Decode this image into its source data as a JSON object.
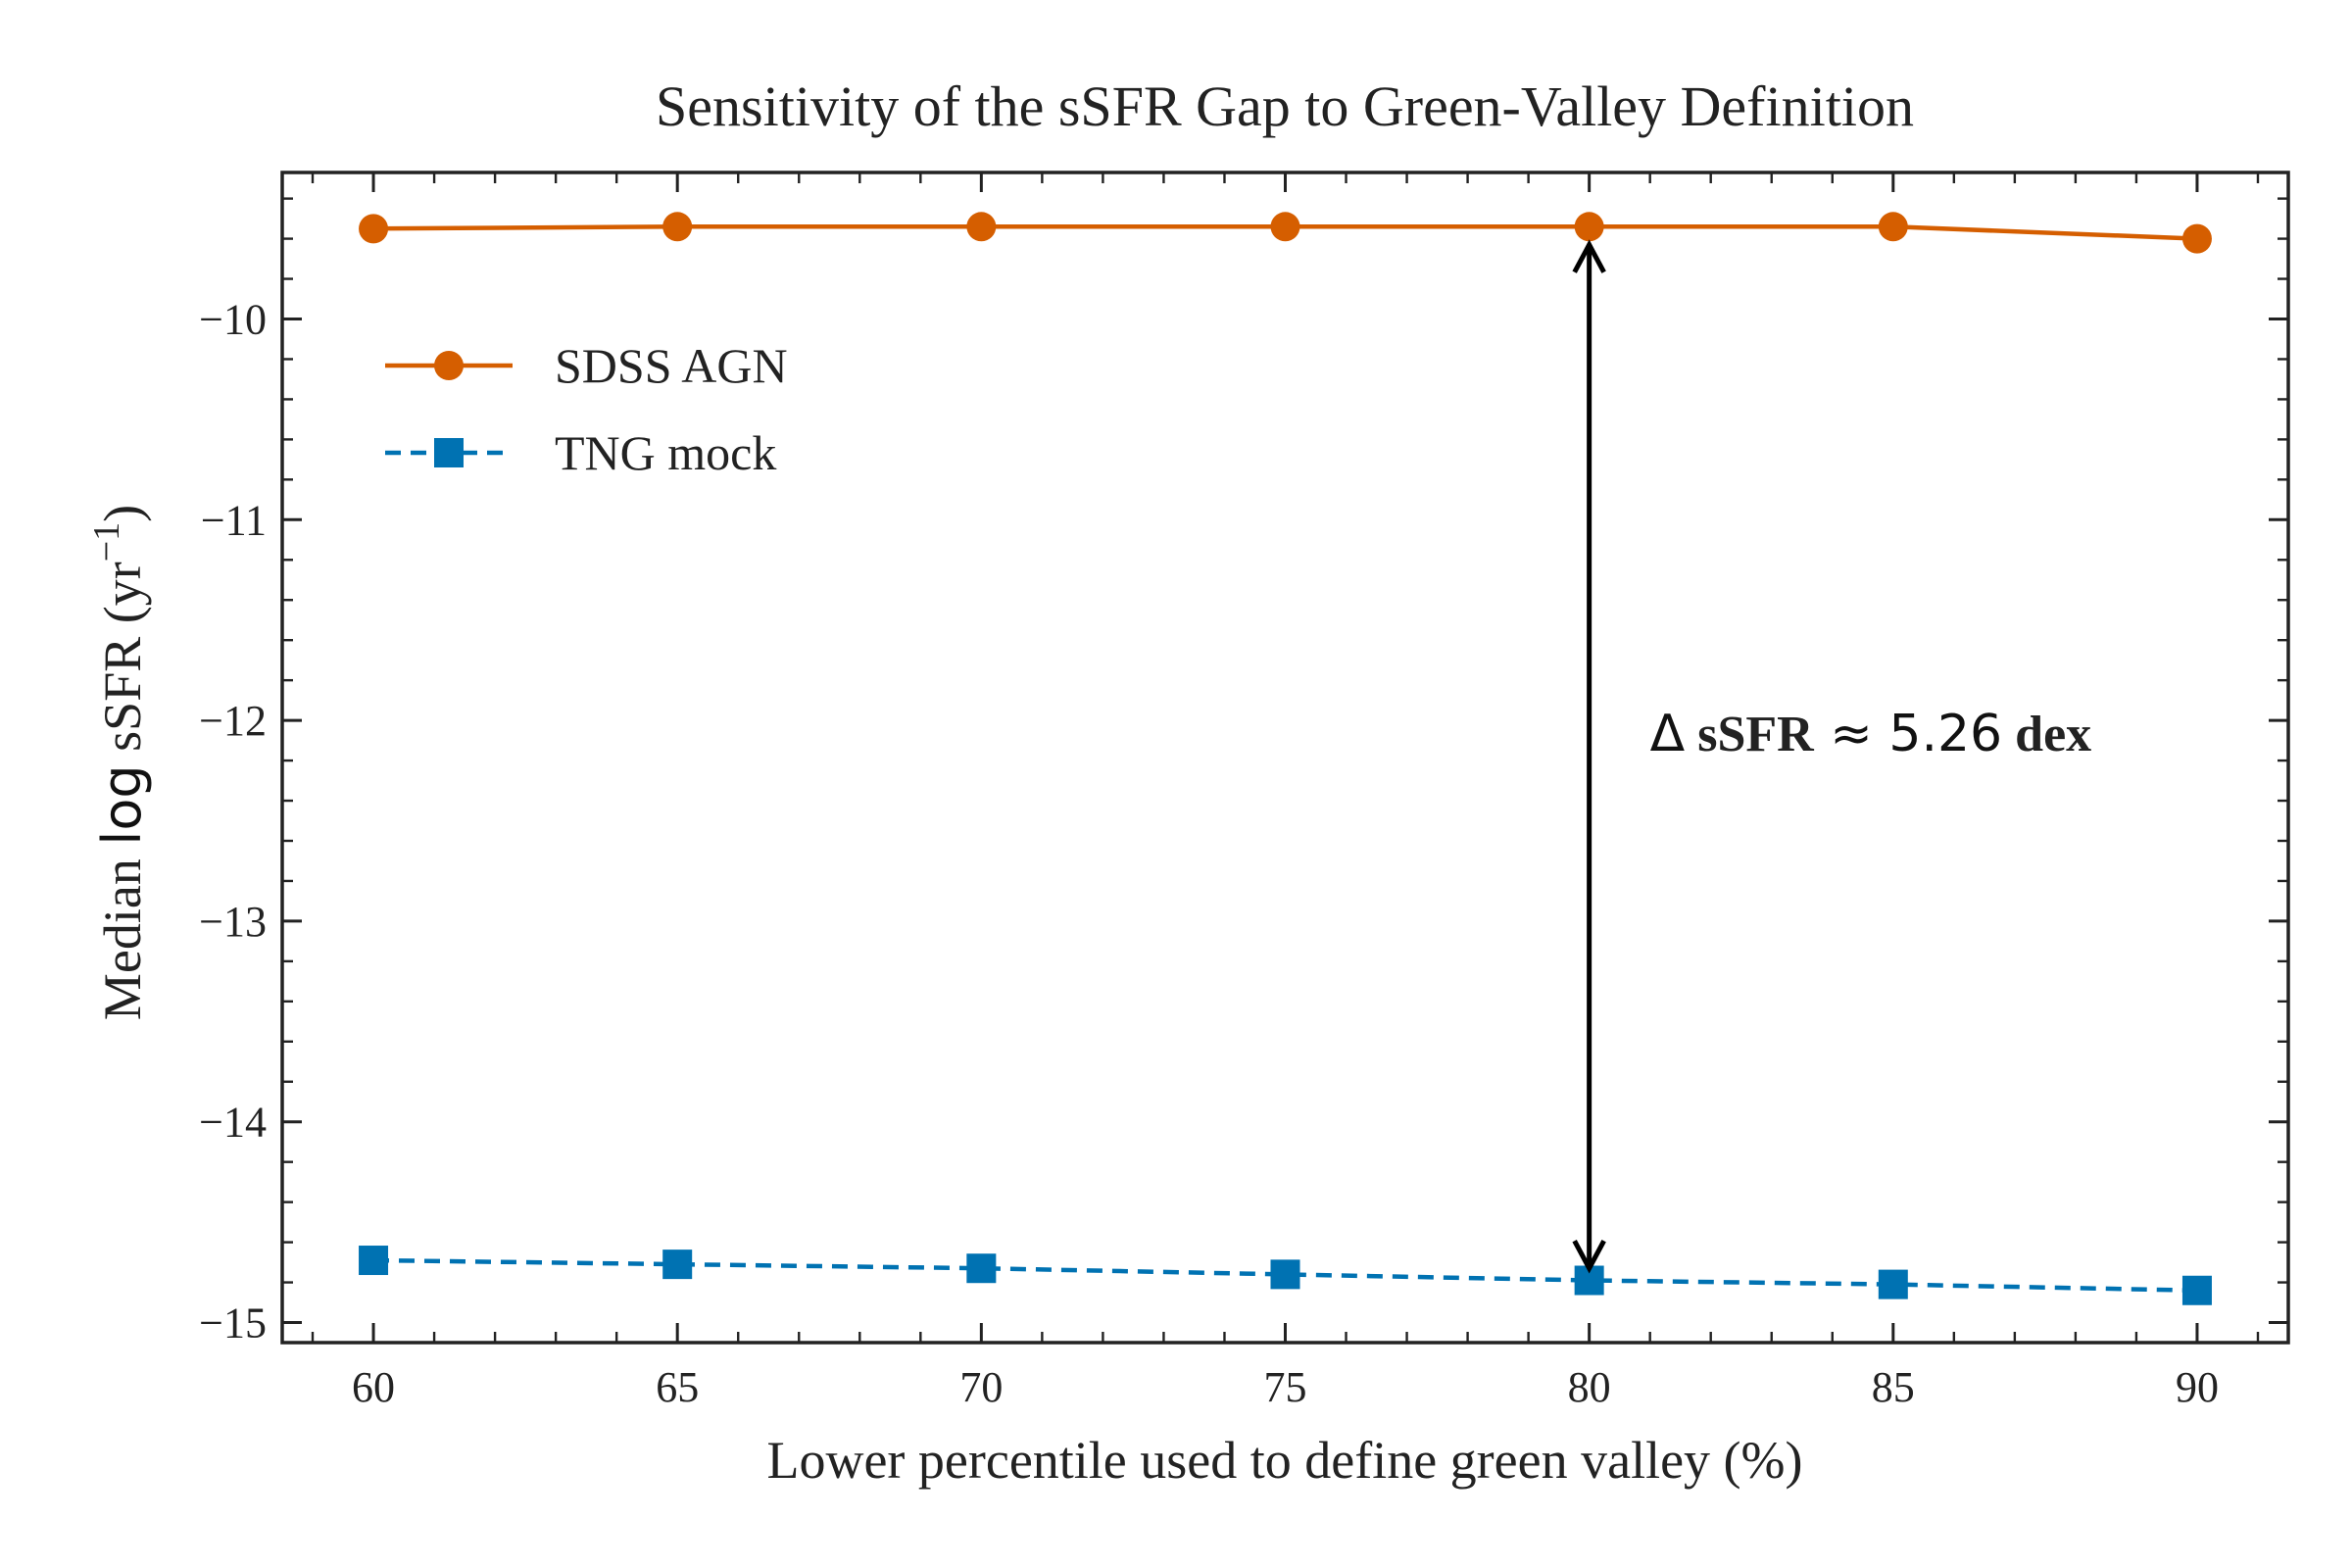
{
  "chart_data": {
    "type": "line",
    "title": "Sensitivity of the sSFR Gap to Green-Valley Definition",
    "xlabel": "Lower percentile used to define green valley (%)",
    "ylabel_main": "Median ",
    "ylabel_log": "log",
    "ylabel_rest": " sSFR (yr",
    "ylabel_sup": "−1",
    "ylabel_close": ")",
    "xlim": [
      58.5,
      91.5
    ],
    "ylim": [
      -15.1,
      -9.27
    ],
    "x": [
      60,
      65,
      70,
      75,
      80,
      85,
      90
    ],
    "x_ticks": [
      60,
      65,
      70,
      75,
      80,
      85,
      90
    ],
    "x_tick_labels": [
      "60",
      "65",
      "70",
      "75",
      "80",
      "85",
      "90"
    ],
    "y_ticks": [
      -10,
      -11,
      -12,
      -13,
      -14,
      -15
    ],
    "y_tick_labels": [
      "−10",
      "−11",
      "−12",
      "−13",
      "−14",
      "−15"
    ],
    "grid": false,
    "legend_position": "upper-left",
    "series": [
      {
        "name": "SDSS AGN",
        "values": [
          -9.55,
          -9.54,
          -9.54,
          -9.54,
          -9.54,
          -9.54,
          -9.6
        ],
        "color": "#d55e00",
        "marker": "circle",
        "linestyle": "solid"
      },
      {
        "name": "TNG mock",
        "values": [
          -14.69,
          -14.71,
          -14.73,
          -14.76,
          -14.79,
          -14.81,
          -14.84
        ],
        "color": "#0072b2",
        "marker": "square",
        "linestyle": "dashed"
      }
    ],
    "annotation": {
      "x": 80,
      "y_top": -9.63,
      "y_bottom": -14.73,
      "text_delta": "Δ",
      "text_bold": "sSFR",
      "text_value": "≈ 5.26",
      "text_unit": "dex",
      "label_x": 81,
      "label_y": -12.15,
      "color": "#000000"
    }
  }
}
